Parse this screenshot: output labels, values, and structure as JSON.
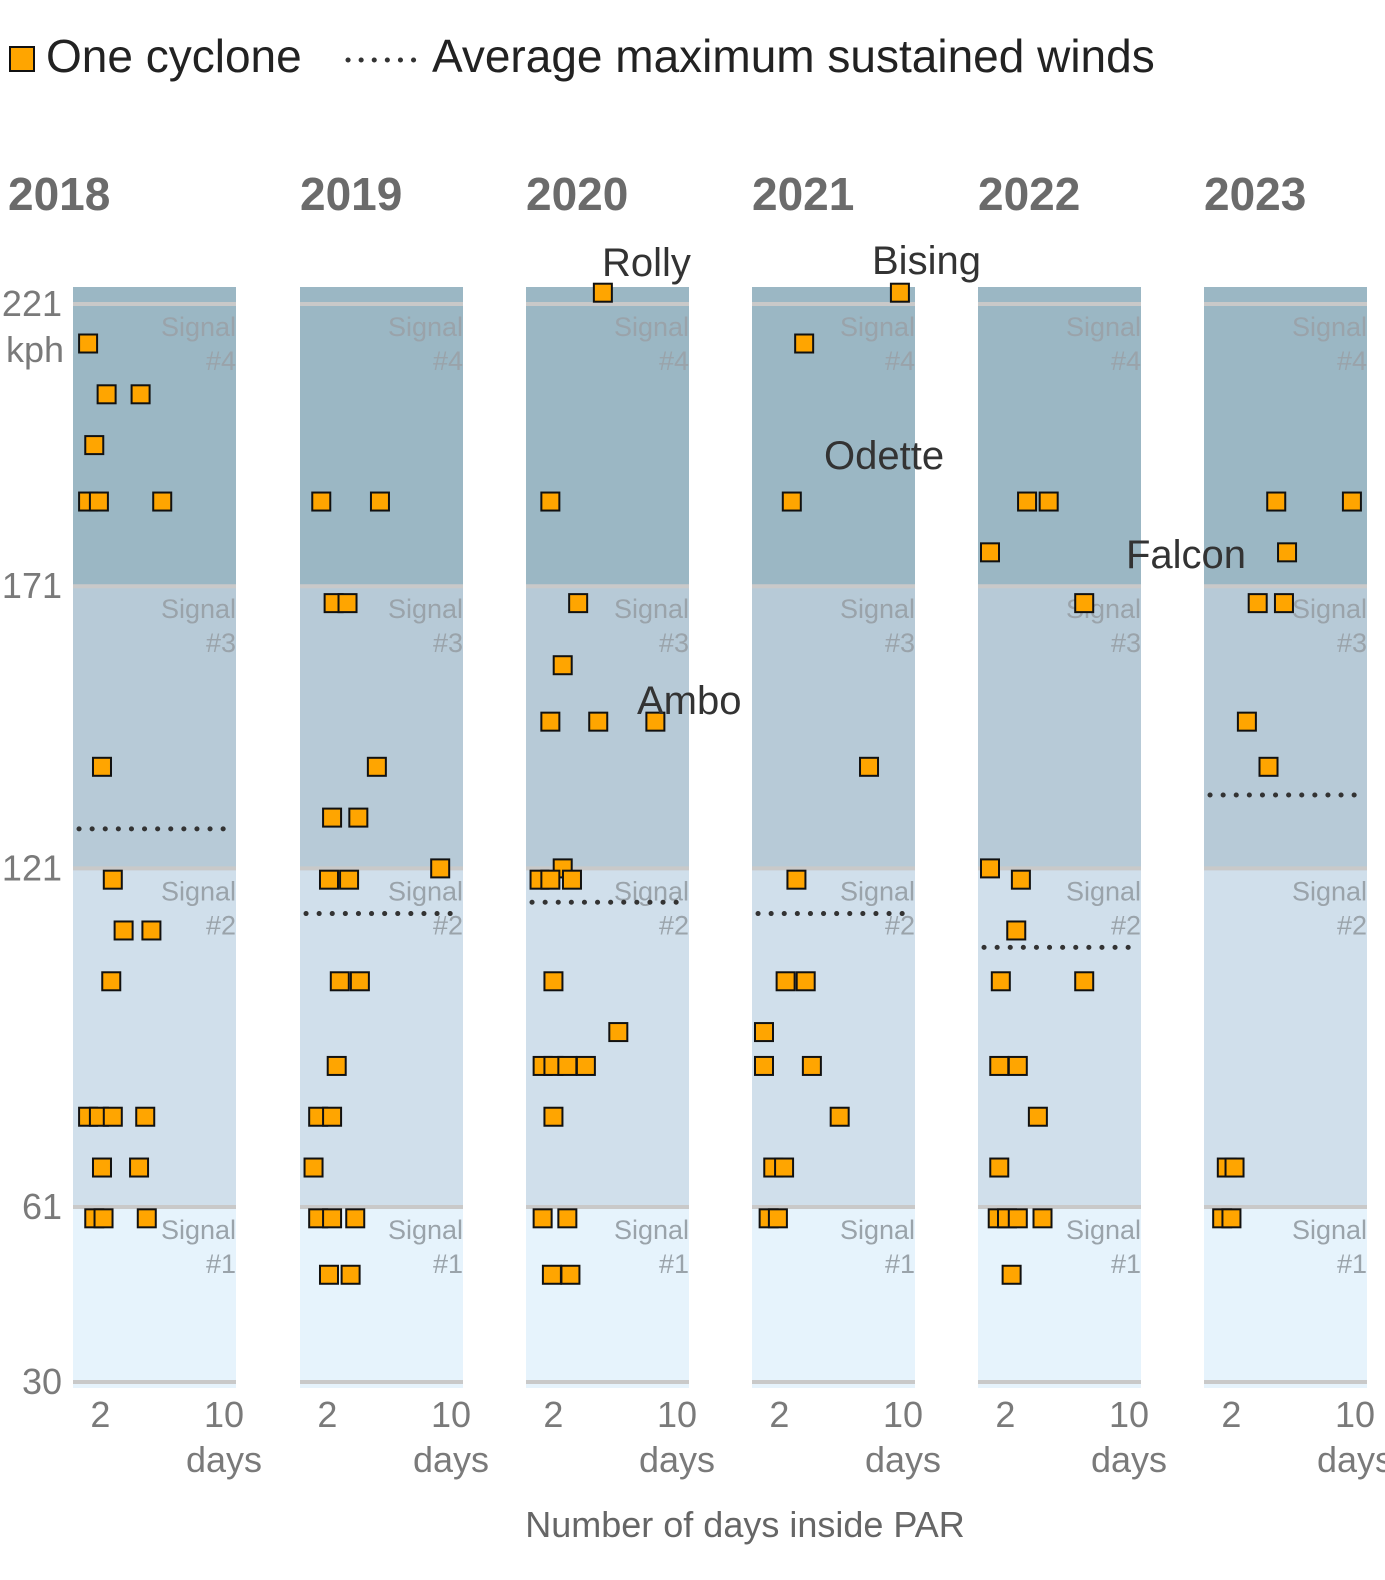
{
  "legend": {
    "cyclone_label": "One cyclone",
    "average_label": "Average maximum sustained winds"
  },
  "chart_data": {
    "type": "scatter",
    "xlabel": "Number of days inside PAR",
    "x_unit_label": "days",
    "x_ticks": [
      2,
      10
    ],
    "ylim": [
      30,
      231
    ],
    "y_ticks": [
      30,
      61,
      121,
      171,
      221
    ],
    "y_unit_label": "kph",
    "bands": [
      {
        "label": "Signal",
        "number": "#1",
        "min": 30,
        "max": 61,
        "color": "#e6f3fc"
      },
      {
        "label": "Signal",
        "number": "#2",
        "min": 61,
        "max": 121,
        "color": "#d0dfeb"
      },
      {
        "label": "Signal",
        "number": "#3",
        "min": 121,
        "max": 171,
        "color": "#b7cad7"
      },
      {
        "label": "Signal",
        "number": "#4",
        "min": 171,
        "max": 231,
        "color": "#9bb7c4"
      }
    ],
    "colors": {
      "marker": "#ffa500",
      "marker_stroke": "#111111",
      "average": "#333333"
    },
    "panels": [
      {
        "year": "2018",
        "average": 128,
        "points": [
          [
            1.2,
            214
          ],
          [
            1.6,
            196
          ],
          [
            2.4,
            205
          ],
          [
            4.6,
            205
          ],
          [
            1.2,
            186
          ],
          [
            1.9,
            186
          ],
          [
            6.0,
            186
          ],
          [
            2.1,
            139
          ],
          [
            2.8,
            119
          ],
          [
            3.5,
            110
          ],
          [
            5.3,
            110
          ],
          [
            2.7,
            101
          ],
          [
            1.2,
            77
          ],
          [
            1.9,
            77
          ],
          [
            2.8,
            77
          ],
          [
            4.9,
            77
          ],
          [
            2.1,
            68
          ],
          [
            4.5,
            68
          ],
          [
            1.6,
            59
          ],
          [
            2.2,
            59
          ],
          [
            5.0,
            59
          ]
        ]
      },
      {
        "year": "2019",
        "average": 113,
        "points": [
          [
            1.6,
            186
          ],
          [
            5.4,
            186
          ],
          [
            2.4,
            168
          ],
          [
            3.3,
            168
          ],
          [
            5.2,
            139
          ],
          [
            2.3,
            130
          ],
          [
            4.0,
            130
          ],
          [
            9.3,
            121
          ],
          [
            2.1,
            119
          ],
          [
            3.4,
            119
          ],
          [
            2.8,
            101
          ],
          [
            4.1,
            101
          ],
          [
            2.6,
            86
          ],
          [
            1.4,
            77
          ],
          [
            2.3,
            77
          ],
          [
            1.1,
            68
          ],
          [
            1.4,
            59
          ],
          [
            2.3,
            59
          ],
          [
            3.8,
            59
          ],
          [
            2.1,
            49
          ],
          [
            3.5,
            49
          ]
        ]
      },
      {
        "year": "2020",
        "average": 115,
        "points": [
          [
            5.2,
            223
          ],
          [
            1.8,
            186
          ],
          [
            3.6,
            168
          ],
          [
            2.6,
            157
          ],
          [
            1.8,
            147
          ],
          [
            4.9,
            147
          ],
          [
            8.6,
            147
          ],
          [
            2.6,
            121
          ],
          [
            1.1,
            119
          ],
          [
            1.8,
            119
          ],
          [
            3.2,
            119
          ],
          [
            2.0,
            101
          ],
          [
            6.2,
            92
          ],
          [
            1.3,
            86
          ],
          [
            2.0,
            86
          ],
          [
            2.9,
            86
          ],
          [
            4.1,
            86
          ],
          [
            2.0,
            77
          ],
          [
            1.3,
            59
          ],
          [
            2.9,
            59
          ],
          [
            1.9,
            49
          ],
          [
            3.1,
            49
          ]
        ]
      },
      {
        "year": "2021",
        "average": 113,
        "points": [
          [
            9.8,
            223
          ],
          [
            3.6,
            214
          ],
          [
            2.8,
            186
          ],
          [
            7.8,
            139
          ],
          [
            3.1,
            119
          ],
          [
            2.4,
            101
          ],
          [
            3.7,
            101
          ],
          [
            1.0,
            92
          ],
          [
            1.0,
            86
          ],
          [
            4.1,
            86
          ],
          [
            5.9,
            77
          ],
          [
            1.6,
            68
          ],
          [
            2.3,
            68
          ],
          [
            1.3,
            59
          ],
          [
            1.9,
            59
          ]
        ]
      },
      {
        "year": "2022",
        "average": 107,
        "points": [
          [
            3.4,
            186
          ],
          [
            4.8,
            186
          ],
          [
            1.0,
            177
          ],
          [
            7.1,
            168
          ],
          [
            1.0,
            121
          ],
          [
            3.0,
            119
          ],
          [
            2.7,
            110
          ],
          [
            1.7,
            101
          ],
          [
            7.1,
            101
          ],
          [
            1.6,
            86
          ],
          [
            2.8,
            86
          ],
          [
            4.1,
            77
          ],
          [
            1.6,
            68
          ],
          [
            1.5,
            59
          ],
          [
            2.1,
            59
          ],
          [
            2.8,
            59
          ],
          [
            4.4,
            59
          ],
          [
            2.4,
            49
          ]
        ]
      },
      {
        "year": "2023",
        "average": 134,
        "points": [
          [
            4.9,
            186
          ],
          [
            9.8,
            186
          ],
          [
            5.6,
            177
          ],
          [
            3.7,
            168
          ],
          [
            5.4,
            168
          ],
          [
            3.0,
            147
          ],
          [
            4.4,
            139
          ],
          [
            1.7,
            68
          ],
          [
            2.2,
            68
          ],
          [
            1.4,
            59
          ],
          [
            2.0,
            59
          ]
        ]
      }
    ],
    "annotations": [
      {
        "text": "Rolly",
        "panel": 2
      },
      {
        "text": "Bising",
        "panel": 3
      },
      {
        "text": "Odette",
        "panel": 3
      },
      {
        "text": "Ambo",
        "panel": 2
      },
      {
        "text": "Falcon",
        "panel": 5
      }
    ]
  }
}
